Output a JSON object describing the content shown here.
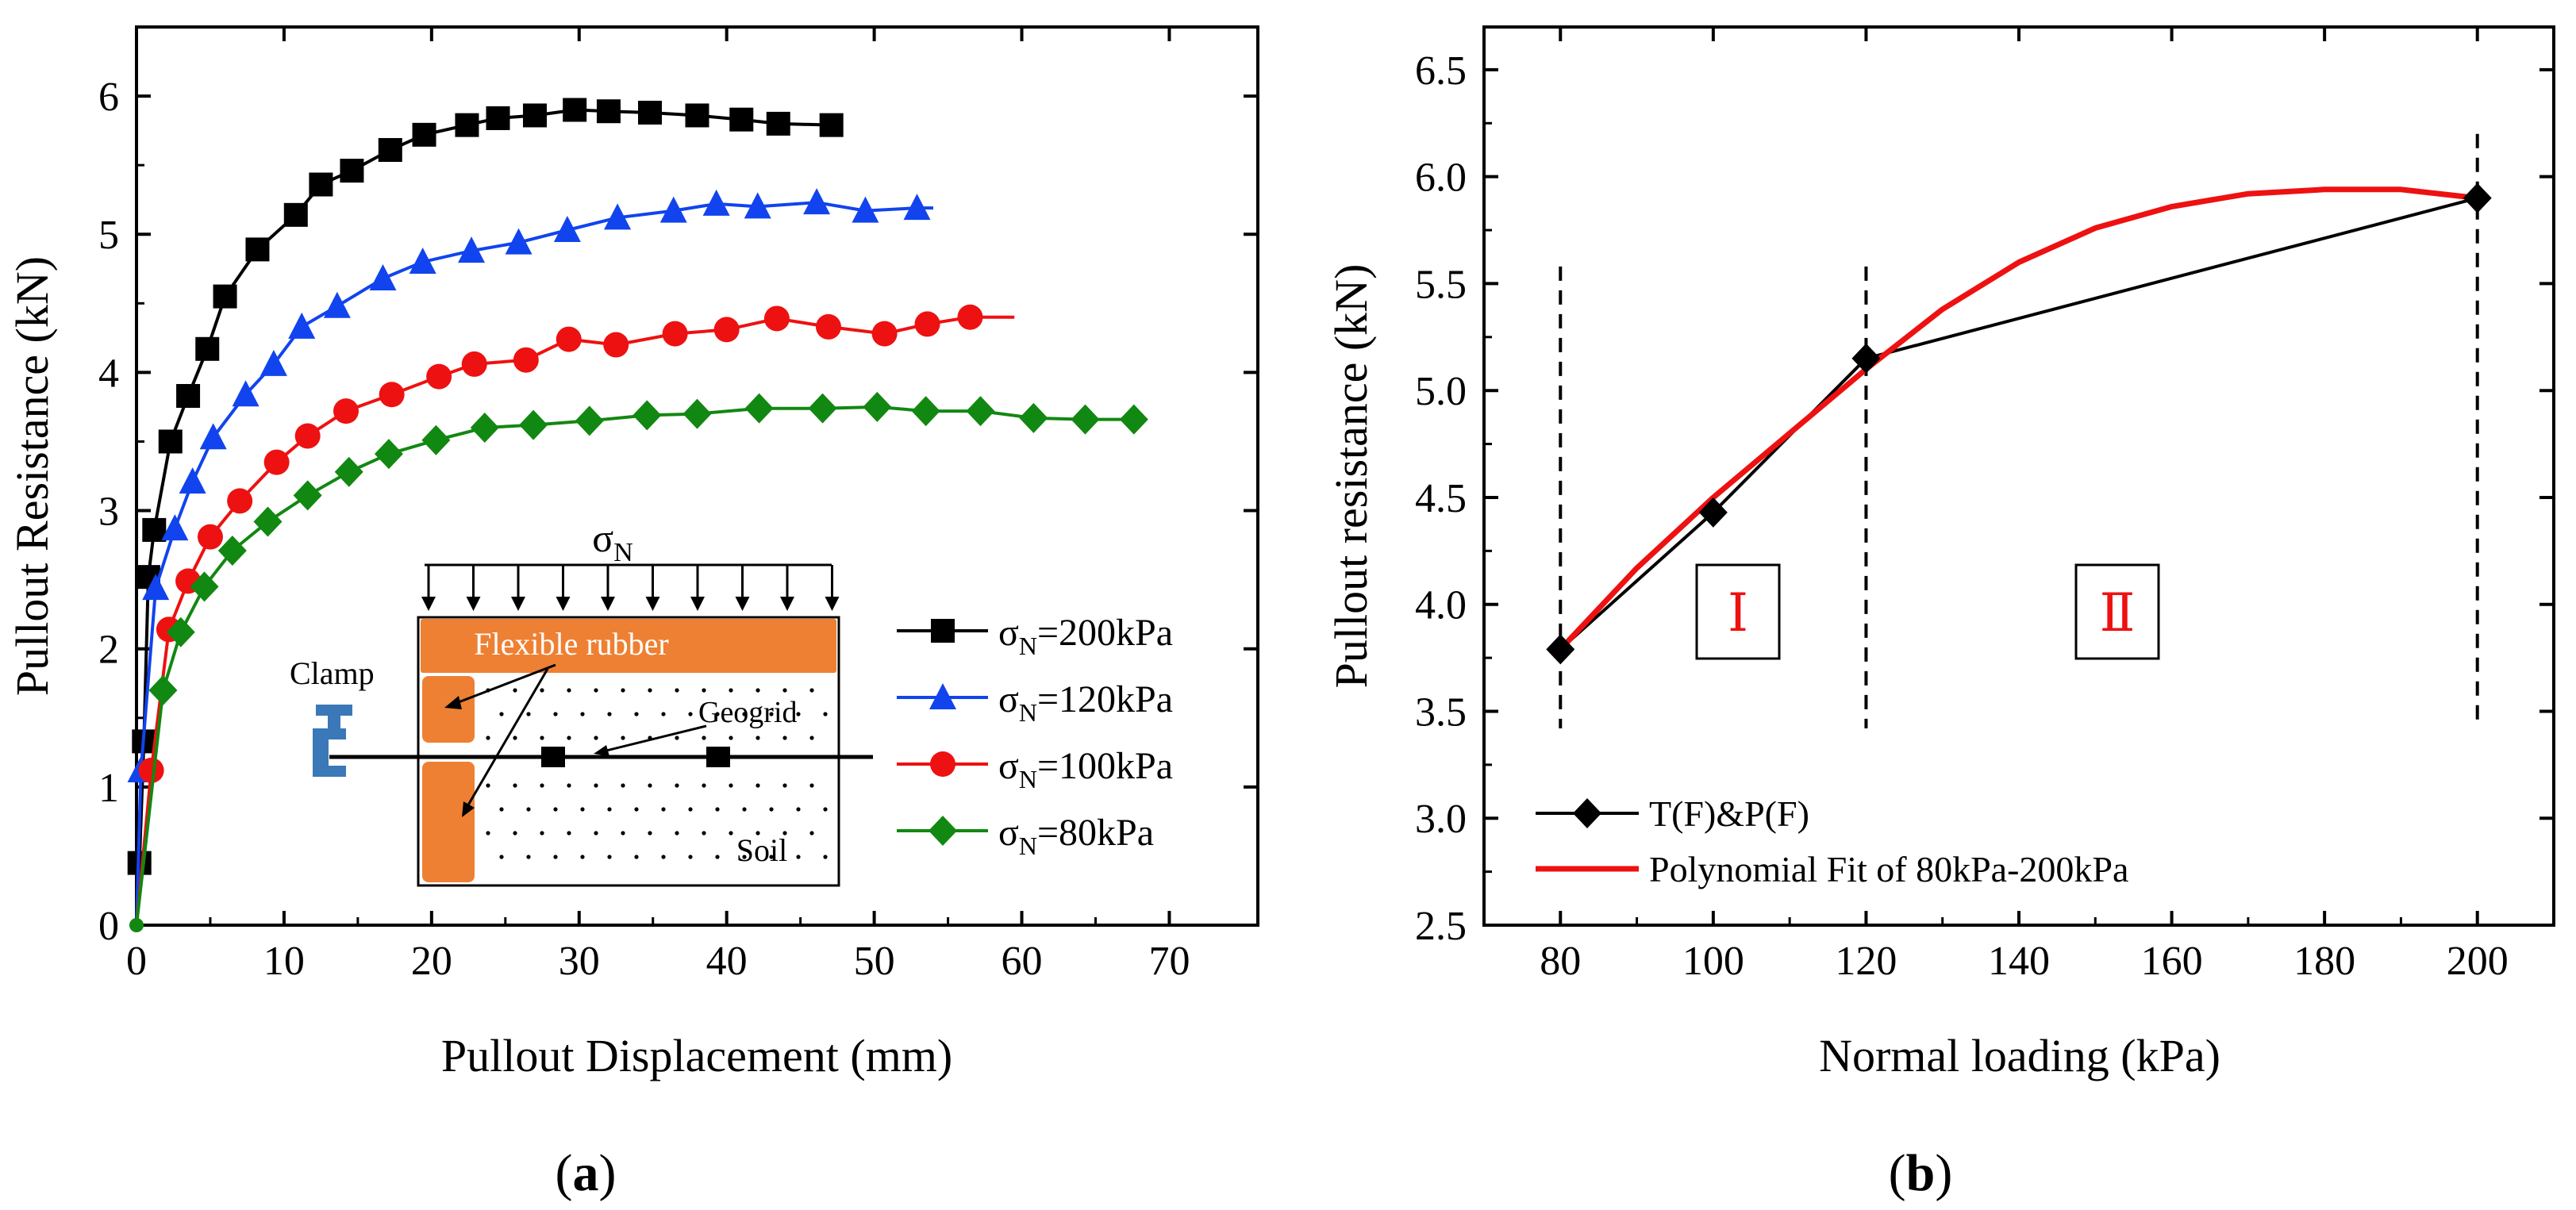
{
  "chart_data": [
    {
      "type": "line",
      "panel": "(a)",
      "panel_letter": "a",
      "xlabel": "Pullout Displacement (mm)",
      "ylabel": "Pullout Resistance (kN)",
      "xlim": [
        0,
        76
      ],
      "ylim": [
        0,
        6.5
      ],
      "xticks": [
        0,
        10,
        20,
        30,
        40,
        50,
        60,
        70
      ],
      "yticks": [
        0,
        1,
        2,
        3,
        4,
        5,
        6
      ],
      "legend_position": "lower-right",
      "series": [
        {
          "name": "σN=200kPa",
          "legend": {
            "sym": "σ",
            "sub": "N",
            "rest": "=200kPa"
          },
          "color": "#000000",
          "marker": "square",
          "x": [
            0.2,
            0.5,
            0.8,
            1.2,
            2.3,
            3.5,
            4.8,
            6.0,
            8.2,
            10.8,
            12.5,
            14.6,
            17.2,
            19.5,
            22.4,
            24.5,
            27.0,
            29.7,
            32.0,
            34.8,
            38.0,
            41.0,
            43.5,
            47.1
          ],
          "y": [
            0.45,
            1.33,
            2.52,
            2.86,
            3.5,
            3.83,
            4.17,
            4.55,
            4.89,
            5.14,
            5.36,
            5.46,
            5.61,
            5.72,
            5.79,
            5.84,
            5.86,
            5.9,
            5.89,
            5.88,
            5.86,
            5.83,
            5.8,
            5.79
          ],
          "line_end": 47.5
        },
        {
          "name": "σN=120kPa",
          "legend": {
            "sym": "σ",
            "sub": "N",
            "rest": "=120kPa"
          },
          "color": "#1144ee",
          "marker": "triangle",
          "x": [
            0.3,
            1.3,
            2.6,
            3.8,
            5.2,
            7.4,
            9.3,
            11.2,
            13.6,
            16.7,
            19.4,
            22.7,
            25.9,
            29.2,
            32.6,
            36.4,
            39.3,
            42.1,
            46.1,
            49.4,
            52.9
          ],
          "y": [
            1.12,
            2.44,
            2.87,
            3.21,
            3.53,
            3.84,
            4.06,
            4.33,
            4.48,
            4.68,
            4.8,
            4.88,
            4.94,
            5.03,
            5.12,
            5.17,
            5.22,
            5.2,
            5.23,
            5.17,
            5.19
          ],
          "line_end": 54
        },
        {
          "name": "σN=100kPa",
          "legend": {
            "sym": "σ",
            "sub": "N",
            "rest": "=100kPa"
          },
          "color": "#ee1111",
          "marker": "circle",
          "x": [
            1.0,
            2.2,
            3.5,
            5.0,
            7.0,
            9.5,
            11.6,
            14.2,
            17.3,
            20.5,
            22.9,
            26.4,
            29.3,
            32.5,
            36.5,
            40.0,
            43.4,
            46.9,
            50.7,
            53.6,
            56.5
          ],
          "y": [
            1.12,
            2.14,
            2.49,
            2.81,
            3.07,
            3.35,
            3.54,
            3.72,
            3.84,
            3.97,
            4.06,
            4.09,
            4.24,
            4.2,
            4.28,
            4.31,
            4.39,
            4.33,
            4.28,
            4.35,
            4.4
          ],
          "line_end": 59.5
        },
        {
          "name": "σN=80kPa",
          "legend": {
            "sym": "σ",
            "sub": "N",
            "rest": "=80kPa"
          },
          "color": "#118811",
          "marker": "diamond",
          "x": [
            1.8,
            3.0,
            4.6,
            6.5,
            8.9,
            11.6,
            14.4,
            17.1,
            20.3,
            23.6,
            26.9,
            30.7,
            34.6,
            38.0,
            42.2,
            46.5,
            50.2,
            53.5,
            57.2,
            60.8,
            64.3,
            67.6
          ],
          "y": [
            1.7,
            2.12,
            2.45,
            2.71,
            2.92,
            3.11,
            3.28,
            3.41,
            3.51,
            3.6,
            3.62,
            3.65,
            3.69,
            3.7,
            3.74,
            3.74,
            3.75,
            3.72,
            3.72,
            3.67,
            3.66,
            3.66
          ],
          "line_end": 68
        }
      ],
      "inset": {
        "load_label_sym": "σ",
        "load_label_sub": "N",
        "rubber_label": "Flexible rubber",
        "clamp_label": "Clamp",
        "geogrid_label": "Geogrid",
        "soil_label": "Soil",
        "rubber_color": "#ee8033",
        "clamp_color": "#3a78b8"
      }
    },
    {
      "type": "line",
      "panel": "(b)",
      "panel_letter": "b",
      "xlabel": "Normal loading (kPa)",
      "ylabel": "Pullout resistance (kN)",
      "xlim": [
        70,
        210
      ],
      "ylim": [
        2.5,
        6.7
      ],
      "xticks": [
        80,
        100,
        120,
        140,
        160,
        180,
        200
      ],
      "yticks": [
        2.5,
        3.0,
        3.5,
        4.0,
        4.5,
        5.0,
        5.5,
        6.0,
        6.5
      ],
      "legend_position": "lower-left",
      "series": [
        {
          "name": "T(F)&P(F)",
          "color": "#000000",
          "marker": "diamond",
          "x": [
            80,
            100,
            120,
            200
          ],
          "y": [
            3.79,
            4.43,
            5.15,
            5.9
          ]
        },
        {
          "name": "Polynomial Fit of 80kPa-200kPa",
          "color": "#ee1111",
          "marker": "none",
          "x": [
            80,
            90,
            100,
            110,
            120,
            130,
            140,
            150,
            160,
            170,
            180,
            190,
            200
          ],
          "y": [
            3.79,
            4.17,
            4.5,
            4.8,
            5.1,
            5.38,
            5.6,
            5.76,
            5.86,
            5.92,
            5.94,
            5.94,
            5.9
          ]
        }
      ],
      "dashed_lines_x": [
        80,
        120,
        200
      ],
      "regions": [
        {
          "label": "Ⅰ",
          "color": "#ee1111"
        },
        {
          "label": "Ⅱ",
          "color": "#ee1111"
        }
      ]
    }
  ]
}
